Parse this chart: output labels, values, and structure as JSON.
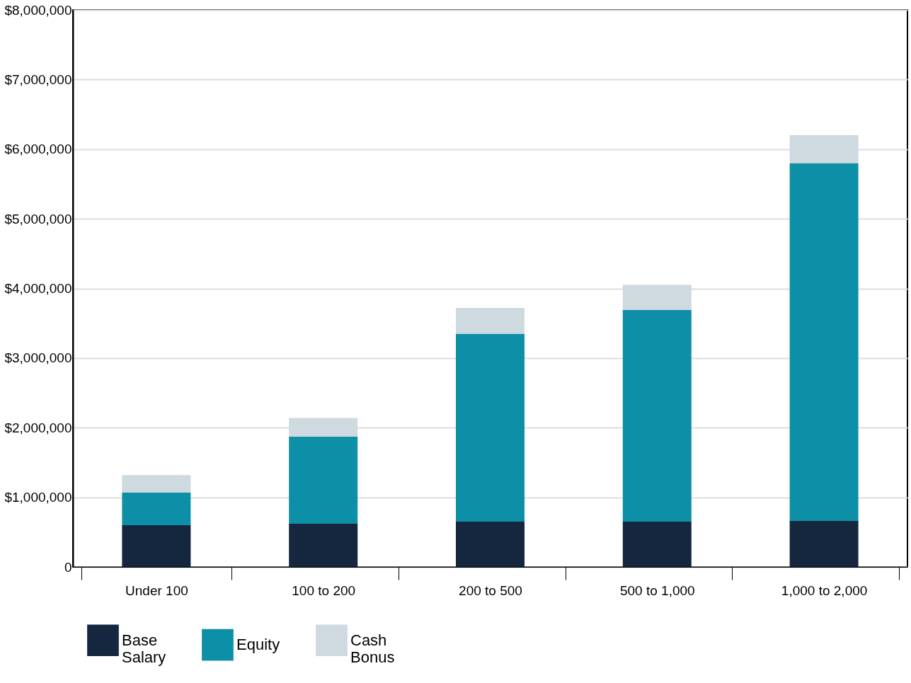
{
  "chart_data": {
    "type": "bar",
    "stacked": true,
    "categories": [
      "Under 100",
      "100 to 200",
      "200 to 500",
      "500 to 1,000",
      "1,000 to 2,000"
    ],
    "series": [
      {
        "name": "Base Salary",
        "color": "#14273e",
        "values": [
          600000,
          620000,
          650000,
          650000,
          660000
        ]
      },
      {
        "name": "Equity",
        "color": "#0e8fa8",
        "values": [
          470000,
          1250000,
          2700000,
          3040000,
          5140000
        ]
      },
      {
        "name": "Cash Bonus",
        "color": "#cfd9e0",
        "values": [
          250000,
          270000,
          370000,
          360000,
          400000
        ]
      }
    ],
    "ylim": [
      0,
      8000000
    ],
    "yticks": [
      0,
      {
        "value": 1000000,
        "label": "$1,000,000"
      },
      {
        "value": 2000000,
        "label": "$2,000,000"
      },
      {
        "value": 3000000,
        "label": "$3,000,000"
      },
      {
        "value": 4000000,
        "label": "$4,000,000"
      },
      {
        "value": 5000000,
        "label": "$5,000,000"
      },
      {
        "value": 6000000,
        "label": "$6,000,000"
      },
      {
        "value": 7000000,
        "label": "$7,000,000"
      },
      {
        "value": 8000000,
        "label": "$8,000,000"
      }
    ],
    "grid": "y",
    "legend": "bottom"
  }
}
